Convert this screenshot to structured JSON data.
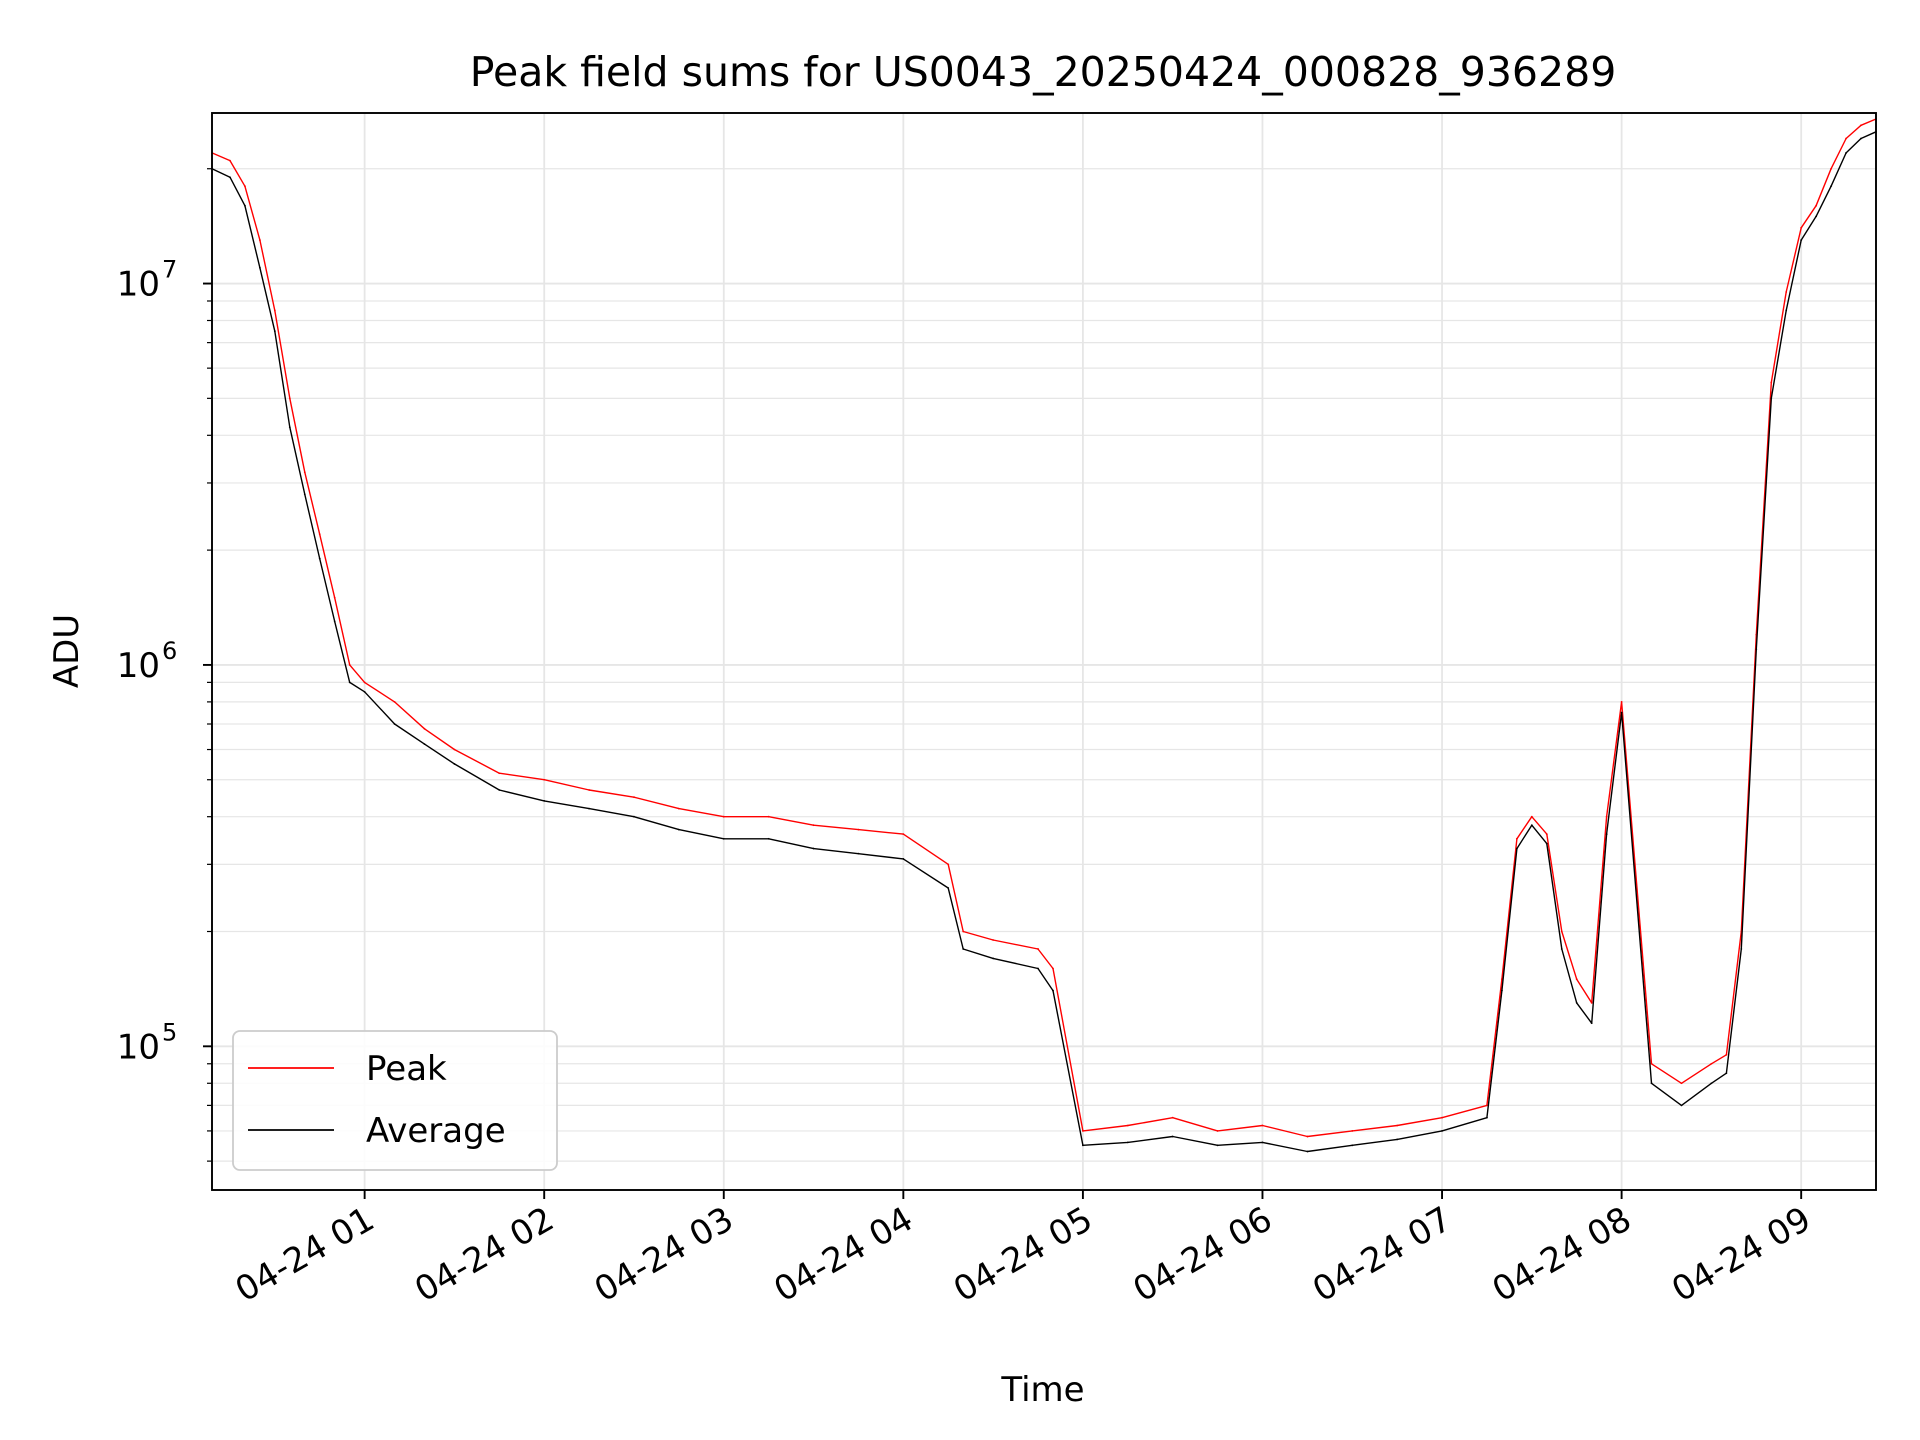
{
  "chart_data": {
    "type": "line",
    "title": "Peak field sums for US0043_20250424_000828_936289",
    "xlabel": "Time",
    "ylabel": "ADU",
    "yscale": "log",
    "ylim": [
      42000,
      28000000
    ],
    "xlim": [
      "04-24 00:09",
      "04-24 09:25"
    ],
    "grid": true,
    "grid_minor_y": true,
    "legend_position": "lower-left",
    "x_ticks": [
      {
        "t": "04-24 01:00",
        "label": "04-24 01"
      },
      {
        "t": "04-24 02:00",
        "label": "04-24 02"
      },
      {
        "t": "04-24 03:00",
        "label": "04-24 03"
      },
      {
        "t": "04-24 04:00",
        "label": "04-24 04"
      },
      {
        "t": "04-24 05:00",
        "label": "04-24 05"
      },
      {
        "t": "04-24 06:00",
        "label": "04-24 06"
      },
      {
        "t": "04-24 07:00",
        "label": "04-24 07"
      },
      {
        "t": "04-24 08:00",
        "label": "04-24 08"
      },
      {
        "t": "04-24 09:00",
        "label": "04-24 09"
      }
    ],
    "y_ticks": [
      {
        "value": 100000,
        "base": "10",
        "exp": "5"
      },
      {
        "value": 1000000,
        "base": "10",
        "exp": "6"
      },
      {
        "value": 10000000,
        "base": "10",
        "exp": "7"
      }
    ],
    "series": [
      {
        "name": "Peak",
        "color": "#ff0000",
        "x": [
          "04-24 00:09",
          "04-24 00:15",
          "04-24 00:20",
          "04-24 00:25",
          "04-24 00:30",
          "04-24 00:35",
          "04-24 00:40",
          "04-24 00:45",
          "04-24 00:50",
          "04-24 00:55",
          "04-24 01:00",
          "04-24 01:10",
          "04-24 01:20",
          "04-24 01:30",
          "04-24 01:45",
          "04-24 02:00",
          "04-24 02:15",
          "04-24 02:30",
          "04-24 02:45",
          "04-24 03:00",
          "04-24 03:15",
          "04-24 03:30",
          "04-24 03:45",
          "04-24 04:00",
          "04-24 04:15",
          "04-24 04:20",
          "04-24 04:30",
          "04-24 04:45",
          "04-24 04:50",
          "04-24 05:00",
          "04-24 05:15",
          "04-24 05:30",
          "04-24 05:45",
          "04-24 06:00",
          "04-24 06:15",
          "04-24 06:30",
          "04-24 06:45",
          "04-24 07:00",
          "04-24 07:15",
          "04-24 07:20",
          "04-24 07:25",
          "04-24 07:30",
          "04-24 07:35",
          "04-24 07:40",
          "04-24 07:45",
          "04-24 07:50",
          "04-24 07:55",
          "04-24 08:00",
          "04-24 08:10",
          "04-24 08:20",
          "04-24 08:30",
          "04-24 08:35",
          "04-24 08:40",
          "04-24 08:45",
          "04-24 08:50",
          "04-24 08:55",
          "04-24 09:00",
          "04-24 09:05",
          "04-24 09:10",
          "04-24 09:15",
          "04-24 09:20",
          "04-24 09:25"
        ],
        "values": [
          22000000,
          21000000,
          18000000,
          13000000,
          8500000,
          5000000,
          3200000,
          2200000,
          1500000,
          1000000,
          900000,
          800000,
          680000,
          600000,
          520000,
          500000,
          470000,
          450000,
          420000,
          400000,
          400000,
          380000,
          370000,
          360000,
          300000,
          200000,
          190000,
          180000,
          160000,
          60000,
          62000,
          65000,
          60000,
          62000,
          58000,
          60000,
          62000,
          65000,
          70000,
          150000,
          350000,
          400000,
          360000,
          200000,
          150000,
          130000,
          400000,
          800000,
          90000,
          80000,
          90000,
          95000,
          200000,
          1200000,
          5500000,
          9500000,
          14000000,
          16000000,
          20000000,
          24000000,
          26000000,
          27000000
        ]
      },
      {
        "name": "Average",
        "color": "#000000",
        "x": [
          "04-24 00:09",
          "04-24 00:15",
          "04-24 00:20",
          "04-24 00:25",
          "04-24 00:30",
          "04-24 00:35",
          "04-24 00:40",
          "04-24 00:45",
          "04-24 00:50",
          "04-24 00:55",
          "04-24 01:00",
          "04-24 01:10",
          "04-24 01:20",
          "04-24 01:30",
          "04-24 01:45",
          "04-24 02:00",
          "04-24 02:15",
          "04-24 02:30",
          "04-24 02:45",
          "04-24 03:00",
          "04-24 03:15",
          "04-24 03:30",
          "04-24 03:45",
          "04-24 04:00",
          "04-24 04:15",
          "04-24 04:20",
          "04-24 04:30",
          "04-24 04:45",
          "04-24 04:50",
          "04-24 05:00",
          "04-24 05:15",
          "04-24 05:30",
          "04-24 05:45",
          "04-24 06:00",
          "04-24 06:15",
          "04-24 06:30",
          "04-24 06:45",
          "04-24 07:00",
          "04-24 07:15",
          "04-24 07:20",
          "04-24 07:25",
          "04-24 07:30",
          "04-24 07:35",
          "04-24 07:40",
          "04-24 07:45",
          "04-24 07:50",
          "04-24 07:55",
          "04-24 08:00",
          "04-24 08:10",
          "04-24 08:20",
          "04-24 08:30",
          "04-24 08:35",
          "04-24 08:40",
          "04-24 08:45",
          "04-24 08:50",
          "04-24 08:55",
          "04-24 09:00",
          "04-24 09:05",
          "04-24 09:10",
          "04-24 09:15",
          "04-24 09:20",
          "04-24 09:25"
        ],
        "values": [
          20000000,
          19000000,
          16000000,
          11000000,
          7500000,
          4200000,
          2800000,
          1900000,
          1300000,
          900000,
          850000,
          700000,
          620000,
          550000,
          470000,
          440000,
          420000,
          400000,
          370000,
          350000,
          350000,
          330000,
          320000,
          310000,
          260000,
          180000,
          170000,
          160000,
          140000,
          55000,
          56000,
          58000,
          55000,
          56000,
          53000,
          55000,
          57000,
          60000,
          65000,
          140000,
          330000,
          380000,
          340000,
          180000,
          130000,
          115000,
          360000,
          750000,
          80000,
          70000,
          80000,
          85000,
          180000,
          1100000,
          5000000,
          8500000,
          13000000,
          15000000,
          18000000,
          22000000,
          24000000,
          25000000
        ]
      }
    ]
  }
}
